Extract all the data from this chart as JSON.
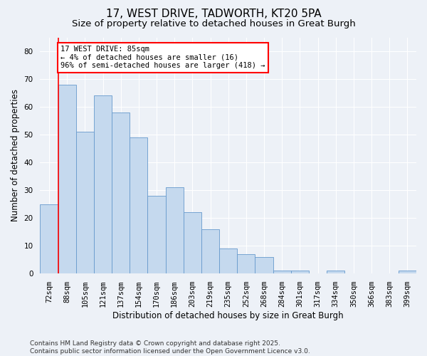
{
  "title": "17, WEST DRIVE, TADWORTH, KT20 5PA",
  "subtitle": "Size of property relative to detached houses in Great Burgh",
  "xlabel": "Distribution of detached houses by size in Great Burgh",
  "ylabel": "Number of detached properties",
  "categories": [
    "72sqm",
    "88sqm",
    "105sqm",
    "121sqm",
    "137sqm",
    "154sqm",
    "170sqm",
    "186sqm",
    "203sqm",
    "219sqm",
    "235sqm",
    "252sqm",
    "268sqm",
    "284sqm",
    "301sqm",
    "317sqm",
    "334sqm",
    "350sqm",
    "366sqm",
    "383sqm",
    "399sqm"
  ],
  "values": [
    25,
    68,
    51,
    64,
    58,
    49,
    28,
    31,
    22,
    16,
    9,
    7,
    6,
    1,
    1,
    0,
    1,
    0,
    0,
    0,
    1
  ],
  "bar_color": "#c5d9ee",
  "bar_edge_color": "#6699cc",
  "annotation_text": "17 WEST DRIVE: 85sqm\n← 4% of detached houses are smaller (16)\n96% of semi-detached houses are larger (418) →",
  "annotation_box_color": "white",
  "annotation_box_edge_color": "red",
  "vline_color": "red",
  "vline_x_idx": 1,
  "ylim": [
    0,
    85
  ],
  "yticks": [
    0,
    10,
    20,
    30,
    40,
    50,
    60,
    70,
    80
  ],
  "footer": "Contains HM Land Registry data © Crown copyright and database right 2025.\nContains public sector information licensed under the Open Government Licence v3.0.",
  "bg_color": "#edf1f7",
  "plot_bg_color": "#edf1f7",
  "grid_color": "white",
  "title_fontsize": 11,
  "subtitle_fontsize": 9.5,
  "axis_label_fontsize": 8.5,
  "tick_fontsize": 7.5,
  "annotation_fontsize": 7.5,
  "footer_fontsize": 6.5
}
